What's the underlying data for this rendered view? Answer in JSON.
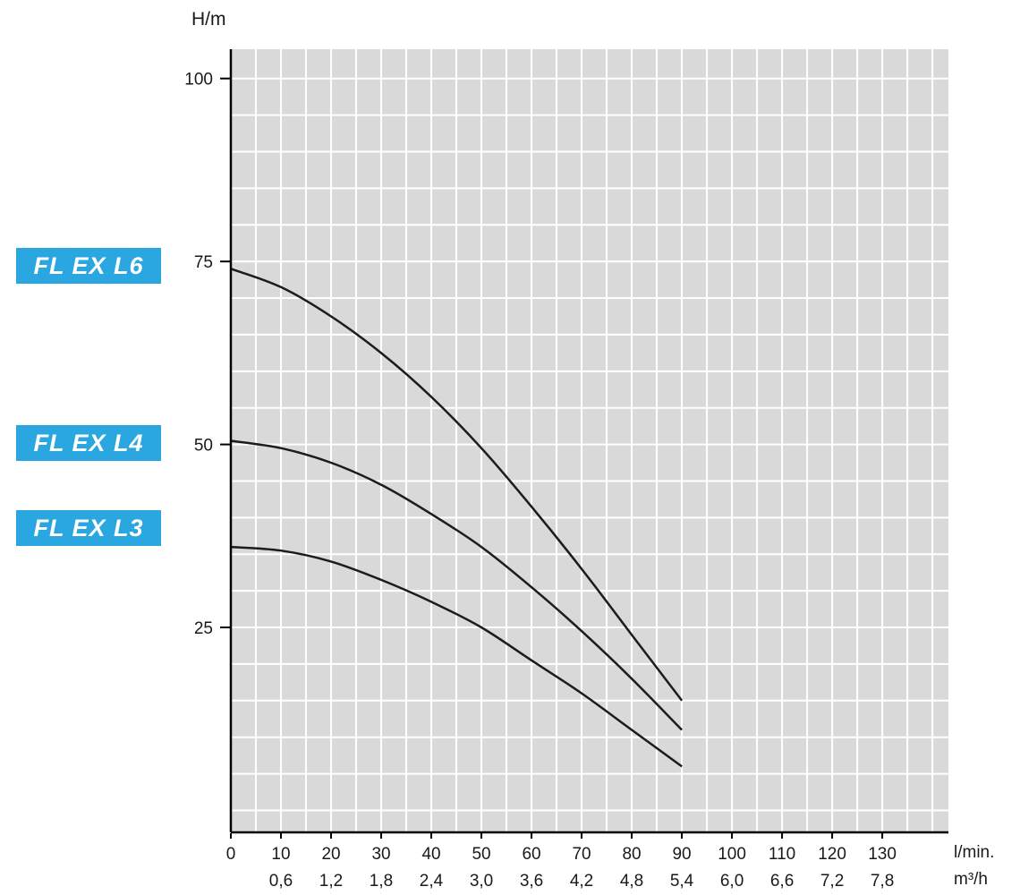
{
  "chart_data": {
    "type": "line",
    "y_axis": {
      "unit_label": "H/m",
      "tick_labels": [
        100,
        75,
        50,
        25
      ],
      "range": [
        -3,
        104
      ],
      "grid_step": 5
    },
    "x_axis": {
      "unit_label_primary": "l/min.",
      "unit_label_secondary": "m³/h",
      "tick_labels_primary": [
        0,
        10,
        20,
        30,
        40,
        50,
        60,
        70,
        80,
        90,
        100,
        110,
        120,
        130
      ],
      "tick_labels_secondary": [
        "0,6",
        "1,2",
        "1,8",
        "2,4",
        "3,0",
        "3,6",
        "4,2",
        "4,8",
        "5,4",
        "6,0",
        "6,6",
        "7,2",
        "7,8"
      ],
      "range": [
        0,
        143.2
      ],
      "grid_step": 5
    },
    "grid": {
      "visible": true
    },
    "legend_position": "left-badges",
    "series": [
      {
        "name": "FL EX L6",
        "points": [
          [
            0,
            74
          ],
          [
            10,
            71.5
          ],
          [
            20,
            67.5
          ],
          [
            30,
            62.5
          ],
          [
            40,
            56.5
          ],
          [
            50,
            49.5
          ],
          [
            60,
            41.5
          ],
          [
            70,
            33
          ],
          [
            80,
            24
          ],
          [
            90,
            15
          ]
        ]
      },
      {
        "name": "FL EX L4",
        "points": [
          [
            0,
            50.5
          ],
          [
            10,
            49.5
          ],
          [
            20,
            47.5
          ],
          [
            30,
            44.5
          ],
          [
            40,
            40.5
          ],
          [
            50,
            36
          ],
          [
            60,
            30.5
          ],
          [
            70,
            24.5
          ],
          [
            80,
            18
          ],
          [
            90,
            11
          ]
        ]
      },
      {
        "name": "FL EX L3",
        "points": [
          [
            0,
            36
          ],
          [
            10,
            35.5
          ],
          [
            20,
            34
          ],
          [
            30,
            31.5
          ],
          [
            40,
            28.5
          ],
          [
            50,
            25
          ],
          [
            60,
            20.5
          ],
          [
            70,
            16
          ],
          [
            80,
            11
          ],
          [
            90,
            6
          ]
        ]
      }
    ],
    "colors": {
      "plot_bg": "#d9d9d9",
      "grid": "#ffffff",
      "curve": "#1c1c1c",
      "axis": "#000000",
      "tick_text": "#1a1a1a",
      "badge_bg": "#2aa7e0",
      "badge_text": "#ffffff"
    }
  }
}
